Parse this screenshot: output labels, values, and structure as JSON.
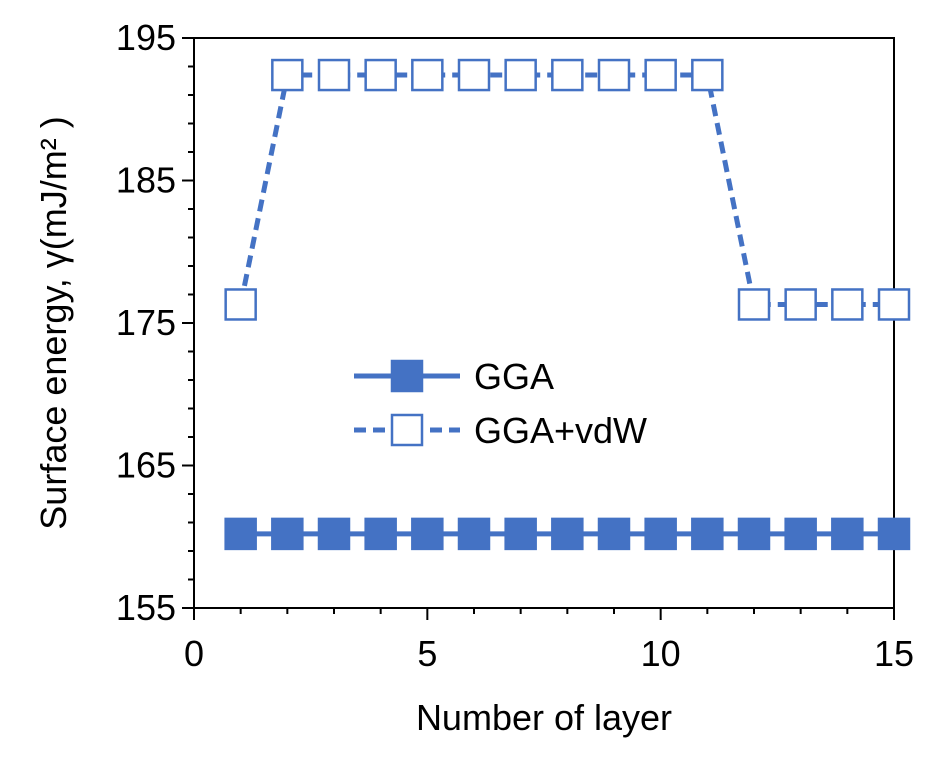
{
  "chart_data": {
    "type": "line",
    "xlabel": "Number of layer",
    "ylabel": "Surface energy, γ(mJ/m² )",
    "xlim": [
      0,
      15
    ],
    "ylim": [
      155,
      195
    ],
    "xticks": [
      0,
      5,
      10,
      15
    ],
    "yticks": [
      155,
      165,
      175,
      185,
      195
    ],
    "grid": false,
    "legend_position": "center",
    "series": [
      {
        "name": "GGA",
        "color": "#4472C4",
        "line_style": "solid",
        "marker": "filled-square",
        "x": [
          1,
          2,
          3,
          4,
          5,
          6,
          7,
          8,
          9,
          10,
          11,
          12,
          13,
          14,
          15
        ],
        "y": [
          160.2,
          160.2,
          160.2,
          160.2,
          160.2,
          160.2,
          160.2,
          160.2,
          160.2,
          160.2,
          160.2,
          160.2,
          160.2,
          160.2,
          160.2
        ]
      },
      {
        "name": "GGA+vdW",
        "color": "#4472C4",
        "line_style": "dashed",
        "marker": "hollow-square",
        "x": [
          1,
          2,
          3,
          4,
          5,
          6,
          7,
          8,
          9,
          10,
          11,
          12,
          13,
          14,
          15
        ],
        "y": [
          176.3,
          192.4,
          192.4,
          192.4,
          192.4,
          192.4,
          192.4,
          192.4,
          192.4,
          192.4,
          192.4,
          176.3,
          176.3,
          176.3,
          176.3
        ]
      }
    ]
  }
}
